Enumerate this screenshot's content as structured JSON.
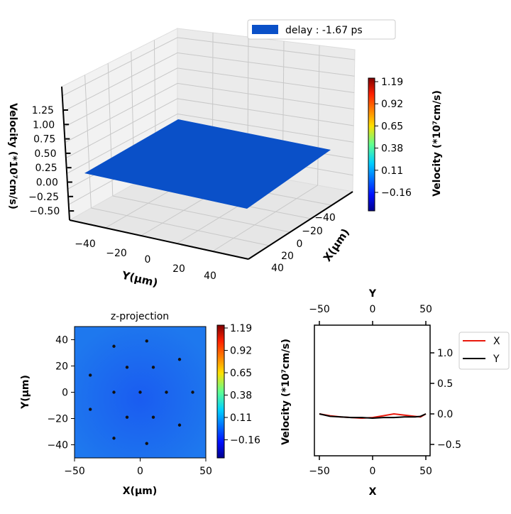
{
  "chart_data": [
    {
      "type": "surface3d",
      "legend": "delay : -1.67 ps",
      "surface_color": "#0a50c8",
      "xlabel": "X(μm)",
      "ylabel": "Y(μm)",
      "zlabel": "Velocity (*10⁷cm/s)",
      "xticks": [
        "−40",
        "−20",
        "0",
        "20",
        "40"
      ],
      "yticks": [
        "−40",
        "−20",
        "0",
        "20",
        "40"
      ],
      "zticks": [
        "1.25",
        "1.00",
        "0.75",
        "0.50",
        "0.25",
        "0.00",
        "−0.25",
        "−0.50"
      ],
      "zlim": [
        -0.5,
        1.3
      ],
      "surface_value_approx": -0.05,
      "colorbar": {
        "label": "Velocity (*10⁷cm/s)",
        "ticks": [
          "1.19",
          "0.92",
          "0.65",
          "0.38",
          "0.11",
          "−0.16"
        ],
        "range": [
          -0.3,
          1.19
        ]
      }
    },
    {
      "type": "heatmap",
      "title": "z-projection",
      "xlabel": "X(μm)",
      "ylabel": "Y(μm)",
      "xlim": [
        -50,
        50
      ],
      "ylim": [
        -50,
        50
      ],
      "xticks": [
        "−50",
        "0",
        "50"
      ],
      "yticks": [
        "40",
        "20",
        "0",
        "−20",
        "−40"
      ],
      "points": [
        [
          -20,
          35
        ],
        [
          5,
          39
        ],
        [
          -10,
          19
        ],
        [
          10,
          19
        ],
        [
          30,
          25
        ],
        [
          -38,
          13
        ],
        [
          -20,
          0
        ],
        [
          0,
          0
        ],
        [
          20,
          0
        ],
        [
          40,
          0
        ],
        [
          -38,
          -13
        ],
        [
          -10,
          -19
        ],
        [
          10,
          -19
        ],
        [
          30,
          -25
        ],
        [
          -20,
          -35
        ],
        [
          5,
          -39
        ]
      ],
      "colorbar": {
        "ticks": [
          "1.19",
          "0.92",
          "0.65",
          "0.38",
          "0.11",
          "−0.16"
        ]
      }
    },
    {
      "type": "line",
      "xlabel": "X",
      "top_xlabel": "Y",
      "ylabel": "Velocity (*10⁷cm/s)",
      "xlim": [
        -55,
        55
      ],
      "ylim": [
        -0.7,
        1.3
      ],
      "xticks": [
        "−50",
        "0",
        "50"
      ],
      "yticks": [
        "1.0",
        "0.5",
        "0.0",
        "−0.5"
      ],
      "series": [
        {
          "name": "X",
          "color": "#e8180c",
          "x": [
            -50,
            -40,
            -30,
            -20,
            -10,
            0,
            10,
            20,
            30,
            40,
            45,
            50
          ],
          "y": [
            0.0,
            -0.03,
            -0.05,
            -0.06,
            -0.07,
            -0.06,
            -0.03,
            0.0,
            -0.02,
            -0.04,
            -0.05,
            0.0
          ]
        },
        {
          "name": "Y",
          "color": "#000000",
          "x": [
            -50,
            -40,
            -30,
            -20,
            -10,
            0,
            10,
            20,
            30,
            40,
            45,
            50
          ],
          "y": [
            0.0,
            -0.04,
            -0.05,
            -0.06,
            -0.06,
            -0.07,
            -0.06,
            -0.06,
            -0.05,
            -0.05,
            -0.04,
            0.0
          ]
        }
      ]
    }
  ]
}
